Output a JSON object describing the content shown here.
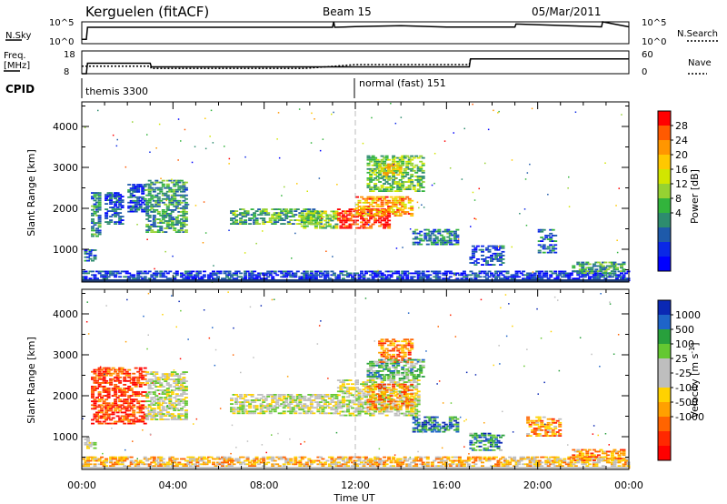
{
  "header": {
    "station": "Kerguelen (fitACF)",
    "beam": "Beam 15",
    "date": "05/Mar/2011"
  },
  "noise_panel": {
    "left_label": "N.Sky",
    "right_label": "N.Search",
    "left_ticks": [
      "10^5",
      "10^0"
    ],
    "right_ticks": [
      "10^5",
      "10^0"
    ]
  },
  "freq_panel": {
    "left_label_1": "Freq.",
    "left_label_2": "[MHz]",
    "right_label": "Nave",
    "left_ticks": [
      "18",
      "8"
    ],
    "right_ticks": [
      "60",
      "0"
    ]
  },
  "cpid_panel": {
    "label": "CPID",
    "program_1": "themis 3300",
    "program_2": "normal (fast) 151"
  },
  "power_colorbar": {
    "label": "Power [dB]",
    "ticks": [
      "28",
      "24",
      "20",
      "16",
      "12",
      "8",
      "4"
    ],
    "colors": [
      "#ff0000",
      "#ff5a00",
      "#ff9600",
      "#ffc800",
      "#d2e600",
      "#96d232",
      "#32b43c",
      "#2d8c6e",
      "#1e5aaa",
      "#0a28e6",
      "#0000ff"
    ]
  },
  "velocity_colorbar": {
    "label": "Velocity [m s^-1]",
    "label_main": "Velocity [m s",
    "label_sup": "-1",
    "label_end": "]",
    "ticks": [
      "1000",
      "500",
      "100",
      "25",
      "-25",
      "-100",
      "-500",
      "-1000"
    ],
    "colors": [
      "#0a28b4",
      "#1e64c8",
      "#28a03c",
      "#64c832",
      "#bebebe",
      "#bebebe",
      "#ffd200",
      "#ffa000",
      "#ff6400",
      "#ff2800",
      "#ff0000"
    ]
  },
  "chart_data": {
    "type": "heatmap",
    "xlabel": "Time UT",
    "x_ticks": [
      "00:00",
      "04:00",
      "08:00",
      "12:00",
      "16:00",
      "20:00",
      "00:00"
    ],
    "xlim": [
      0,
      24
    ],
    "panels": [
      {
        "name": "power",
        "ylabel": "Slant Range [km]",
        "y_ticks": [
          "4000",
          "3000",
          "2000",
          "1000"
        ],
        "ylim": [
          200,
          4600
        ],
        "patches": [
          {
            "t0": 0.0,
            "t1": 24.0,
            "r0": 220,
            "r1": 480,
            "level": 0.15
          },
          {
            "t0": 0.1,
            "t1": 0.6,
            "r0": 700,
            "r1": 1000,
            "level": 0.25
          },
          {
            "t0": 0.4,
            "t1": 0.8,
            "r0": 1300,
            "r1": 2400,
            "level": 0.3
          },
          {
            "t0": 1.0,
            "t1": 1.8,
            "r0": 1600,
            "r1": 2400,
            "level": 0.2
          },
          {
            "t0": 2.0,
            "t1": 2.8,
            "r0": 1900,
            "r1": 2600,
            "level": 0.2
          },
          {
            "t0": 2.8,
            "t1": 4.6,
            "r0": 1400,
            "r1": 2700,
            "level": 0.35
          },
          {
            "t0": 6.5,
            "t1": 10.5,
            "r0": 1600,
            "r1": 2000,
            "level": 0.4
          },
          {
            "t0": 9.5,
            "t1": 11.2,
            "r0": 1500,
            "r1": 1950,
            "level": 0.5
          },
          {
            "t0": 11.2,
            "t1": 13.5,
            "r0": 1500,
            "r1": 2000,
            "level": 0.95
          },
          {
            "t0": 12.0,
            "t1": 14.5,
            "r0": 1800,
            "r1": 2300,
            "level": 0.75
          },
          {
            "t0": 12.5,
            "t1": 15.0,
            "r0": 2400,
            "r1": 3300,
            "level": 0.45
          },
          {
            "t0": 13.0,
            "t1": 14.0,
            "r0": 2800,
            "r1": 3100,
            "level": 0.65
          },
          {
            "t0": 14.5,
            "t1": 16.5,
            "r0": 1100,
            "r1": 1500,
            "level": 0.3
          },
          {
            "t0": 17.0,
            "t1": 18.5,
            "r0": 600,
            "r1": 1100,
            "level": 0.2
          },
          {
            "t0": 20.0,
            "t1": 20.8,
            "r0": 900,
            "r1": 1500,
            "level": 0.25
          },
          {
            "t0": 21.5,
            "t1": 23.8,
            "r0": 400,
            "r1": 700,
            "level": 0.35
          }
        ]
      },
      {
        "name": "velocity",
        "ylabel": "Slant Range [km]",
        "y_ticks": [
          "4000",
          "3000",
          "2000",
          "1000"
        ],
        "ylim": [
          200,
          4600
        ],
        "patches": [
          {
            "t0": 0.0,
            "t1": 24.0,
            "r0": 220,
            "r1": 520,
            "level": 0.62
          },
          {
            "t0": 0.1,
            "t1": 0.6,
            "r0": 700,
            "r1": 1000,
            "level": 0.45
          },
          {
            "t0": 0.4,
            "t1": 2.8,
            "r0": 1300,
            "r1": 2700,
            "level": 0.85
          },
          {
            "t0": 2.8,
            "t1": 4.6,
            "r0": 1400,
            "r1": 2600,
            "level": 0.45
          },
          {
            "t0": 6.5,
            "t1": 11.2,
            "r0": 1550,
            "r1": 2050,
            "level": 0.45
          },
          {
            "t0": 11.2,
            "t1": 14.8,
            "r0": 1500,
            "r1": 2400,
            "level": 0.45
          },
          {
            "t0": 12.5,
            "t1": 14.5,
            "r0": 1650,
            "r1": 2300,
            "level": 0.7
          },
          {
            "t0": 13.0,
            "t1": 14.5,
            "r0": 2800,
            "r1": 3400,
            "level": 0.75
          },
          {
            "t0": 12.5,
            "t1": 15.0,
            "r0": 2400,
            "r1": 2900,
            "level": 0.3
          },
          {
            "t0": 14.5,
            "t1": 16.5,
            "r0": 1100,
            "r1": 1500,
            "level": 0.15
          },
          {
            "t0": 17.0,
            "t1": 18.5,
            "r0": 650,
            "r1": 1100,
            "level": 0.2
          },
          {
            "t0": 19.5,
            "t1": 21.0,
            "r0": 1000,
            "r1": 1500,
            "level": 0.7
          },
          {
            "t0": 21.5,
            "t1": 23.8,
            "r0": 400,
            "r1": 700,
            "level": 0.7
          }
        ]
      }
    ],
    "noise_sky": {
      "x": [
        0,
        0.2,
        0.25,
        11,
        11.05,
        11.1,
        12,
        14,
        16,
        19,
        19.05,
        22.8,
        22.85,
        24
      ],
      "y": [
        0.2,
        0.2,
        0.75,
        0.75,
        1.0,
        0.75,
        0.78,
        0.82,
        0.76,
        0.76,
        0.9,
        0.77,
        1.0,
        0.77
      ]
    },
    "frequency": {
      "x": [
        0,
        0.2,
        0.25,
        3.0,
        3.05,
        17.0,
        17.05,
        24
      ],
      "y": [
        8,
        8,
        12.6,
        12.6,
        11.0,
        11.0,
        14.5,
        14.5
      ]
    },
    "nave": {
      "x": [
        0,
        3.0,
        3.05,
        9.8,
        12.0,
        17.0,
        17.05,
        24
      ],
      "y": [
        20,
        20,
        14,
        14,
        24,
        24,
        39,
        39
      ]
    }
  }
}
